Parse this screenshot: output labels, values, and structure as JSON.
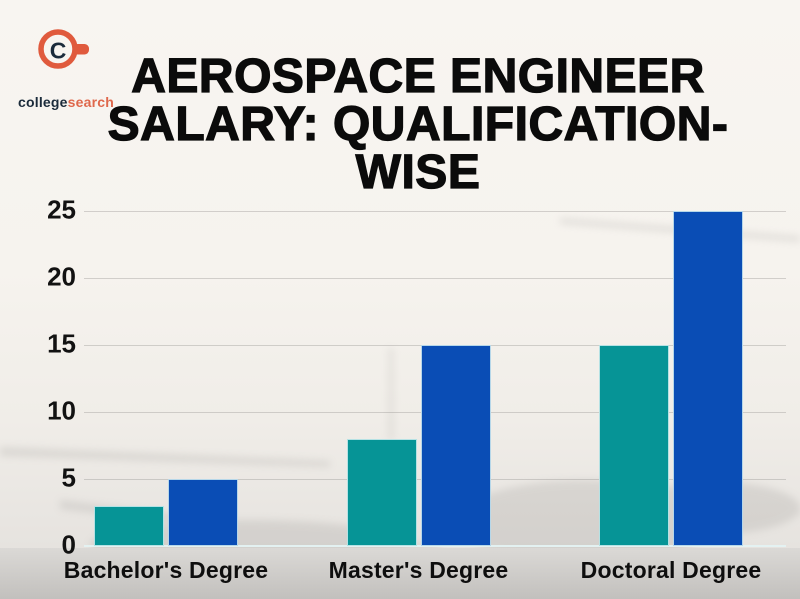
{
  "logo": {
    "icon": "collegesearch-magnifier-c-icon",
    "brand_part1": "college",
    "brand_part2": "search"
  },
  "title": {
    "line1": "AEROSPACE ENGINEER",
    "line2": "SALARY: QUALIFICATION-",
    "line3": "WISE"
  },
  "chart_data": {
    "type": "bar",
    "title": "AEROSPACE ENGINEER SALARY: QUALIFICATION-WISE",
    "categories": [
      "Bachelor's Degree",
      "Master's Degree",
      "Doctoral Degree"
    ],
    "series": [
      {
        "name": "series-1",
        "color": "#069496",
        "values": [
          3,
          8,
          15
        ]
      },
      {
        "name": "series-2",
        "color": "#0A4DB5",
        "values": [
          5,
          15,
          25
        ]
      }
    ],
    "yticks": [
      0,
      5,
      10,
      15,
      20,
      25
    ],
    "ylim": [
      0,
      25
    ],
    "xlabel": "",
    "ylabel": "",
    "grid": true,
    "legend_position": "none"
  },
  "colors": {
    "background": "#F6F3EE",
    "title_text": "#0B0B0B",
    "axis_text": "#121212",
    "gridline": "#B9B7B4",
    "bottom_band": "#C9C7C4",
    "bar_teal": "#069496",
    "bar_blue": "#0A4DB5",
    "logo_navy": "#1B2B3B",
    "logo_orange": "#E05A3D"
  }
}
